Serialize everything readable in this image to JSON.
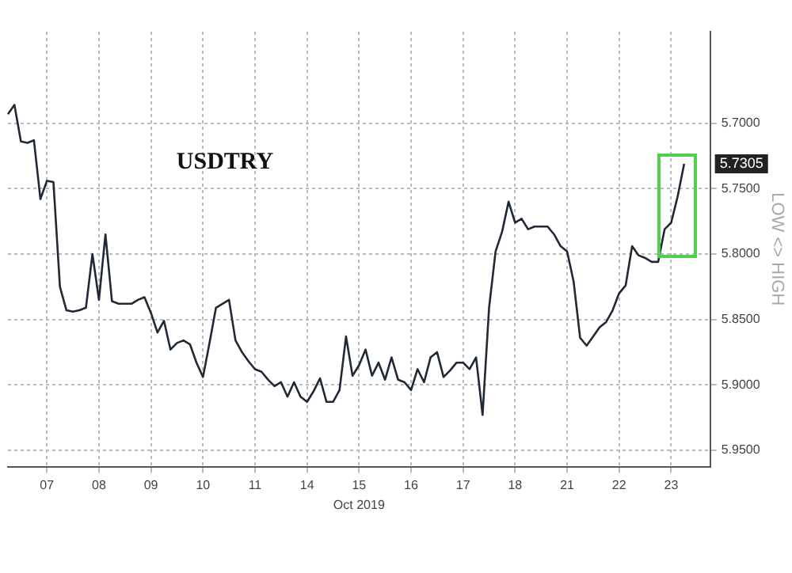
{
  "chart_data": {
    "type": "line",
    "title": "USDTRY",
    "xlabel": "Oct 2019",
    "ylabel": "LOW <> HIGH",
    "categories": [
      null,
      null,
      null,
      null,
      null,
      null,
      "07",
      null,
      null,
      null,
      null,
      null,
      null,
      null,
      "08",
      null,
      null,
      null,
      null,
      null,
      null,
      null,
      "09",
      null,
      null,
      null,
      null,
      null,
      null,
      null,
      "10",
      null,
      null,
      null,
      null,
      null,
      null,
      null,
      "11",
      null,
      null,
      null,
      null,
      null,
      null,
      null,
      "14",
      null,
      null,
      null,
      null,
      null,
      null,
      null,
      "15",
      null,
      null,
      null,
      null,
      null,
      null,
      null,
      "16",
      null,
      null,
      null,
      null,
      null,
      null,
      null,
      "17",
      null,
      null,
      null,
      null,
      null,
      null,
      null,
      "18",
      null,
      null,
      null,
      null,
      null,
      null,
      null,
      "21",
      null,
      null,
      null,
      null,
      null,
      null,
      null,
      "22",
      null,
      null,
      null,
      null,
      null,
      null,
      null,
      "23",
      null,
      null,
      null,
      null,
      null,
      null
    ],
    "series": [
      {
        "color": "#1f2a36",
        "values": [
          5.693,
          5.686,
          5.714,
          5.715,
          5.713,
          5.758,
          5.744,
          5.745,
          5.825,
          5.843,
          5.844,
          5.843,
          5.841,
          5.8,
          5.835,
          5.785,
          5.836,
          5.838,
          5.838,
          5.838,
          5.835,
          5.833,
          5.845,
          5.86,
          5.851,
          5.873,
          5.868,
          5.866,
          5.869,
          5.883,
          5.894,
          5.868,
          5.841,
          5.838,
          5.835,
          5.866,
          5.875,
          5.882,
          5.888,
          5.89,
          5.896,
          5.901,
          5.898,
          5.909,
          5.898,
          5.909,
          5.913,
          5.905,
          5.895,
          5.913,
          5.913,
          5.904,
          5.863,
          5.893,
          5.885,
          5.873,
          5.893,
          5.883,
          5.896,
          5.879,
          5.896,
          5.898,
          5.904,
          5.888,
          5.898,
          5.879,
          5.875,
          5.894,
          5.889,
          5.883,
          5.883,
          5.888,
          5.879,
          5.923,
          5.841,
          5.798,
          5.783,
          5.76,
          5.776,
          5.773,
          5.781,
          5.779,
          5.779,
          5.779,
          5.785,
          5.794,
          5.798,
          5.821,
          5.864,
          5.87,
          5.863,
          5.856,
          5.852,
          5.843,
          5.83,
          5.824,
          5.794,
          5.801,
          5.803,
          5.806,
          5.806,
          5.781,
          5.776,
          5.756,
          5.731,
          null,
          null,
          null,
          null
        ]
      }
    ],
    "ylim": [
      5.9625,
      5.63
    ],
    "yticks": [
      {
        "value": 5.7,
        "label": "5.7000"
      },
      {
        "value": 5.75,
        "label": "5.7500"
      },
      {
        "value": 5.8,
        "label": "5.8000"
      },
      {
        "value": 5.85,
        "label": "5.8500"
      },
      {
        "value": 5.9,
        "label": "5.9000"
      },
      {
        "value": 5.95,
        "label": "5.9500"
      }
    ],
    "annotations": [
      "5.7305"
    ],
    "grid": true,
    "legend": false,
    "marker": "none",
    "line_style": "solid"
  }
}
